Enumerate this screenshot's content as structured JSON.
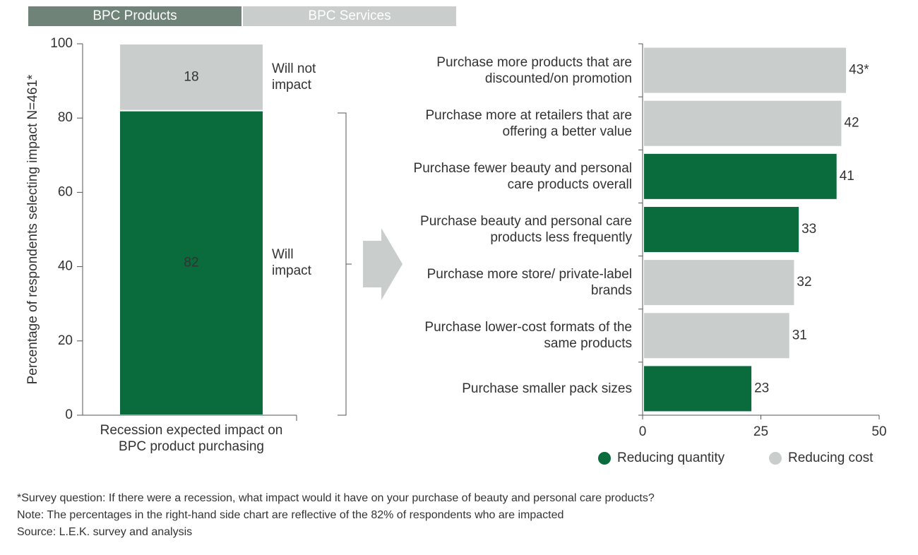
{
  "tabs": {
    "items": [
      "BPC Products",
      "BPC Services"
    ],
    "active": 0
  },
  "chart_data": [
    {
      "type": "stacked-bar",
      "y_label": "Percentage of respondents selecting impact N=461*",
      "categories": [
        "Recession expected impact on BPC product purchasing"
      ],
      "series": [
        {
          "name": "Will impact",
          "color": "#0a6b3c",
          "values": [
            82
          ]
        },
        {
          "name": "Will not impact",
          "color": "#c9cdcc",
          "values": [
            18
          ]
        }
      ],
      "ylim": [
        0,
        100
      ],
      "yticks": [
        0,
        20,
        40,
        60,
        80,
        100
      ]
    },
    {
      "type": "hbar",
      "categories": [
        "Purchase more products that are discounted/on promotion",
        "Purchase more at retailers that are offering a better value",
        "Purchase fewer beauty and personal care products overall",
        "Purchase beauty and personal care products less frequently",
        "Purchase more store/ private-label brands",
        "Purchase lower-cost formats of the same products",
        "Purchase smaller pack sizes"
      ],
      "values": [
        43,
        42,
        41,
        33,
        32,
        31,
        23
      ],
      "value_labels": [
        "43*",
        "42",
        "41",
        "33",
        "32",
        "31",
        "23"
      ],
      "colors": [
        "#c9cdcc",
        "#c9cdcc",
        "#0a6b3c",
        "#0a6b3c",
        "#c9cdcc",
        "#c9cdcc",
        "#0a6b3c"
      ],
      "legend": [
        {
          "name": "Reducing quantity",
          "color": "#0a6b3c"
        },
        {
          "name": "Reducing cost",
          "color": "#c9cdcc"
        }
      ],
      "xlim": [
        0,
        50
      ],
      "xticks": [
        0,
        25,
        50
      ]
    }
  ],
  "footnotes": [
    "*Survey question: If there were a recession, what impact would it have on your purchase of beauty and personal care products?",
    "Note: The percentages in the right-hand side chart are reflective of the 82% of respondents who are impacted",
    "Source: L.E.K. survey and analysis"
  ]
}
